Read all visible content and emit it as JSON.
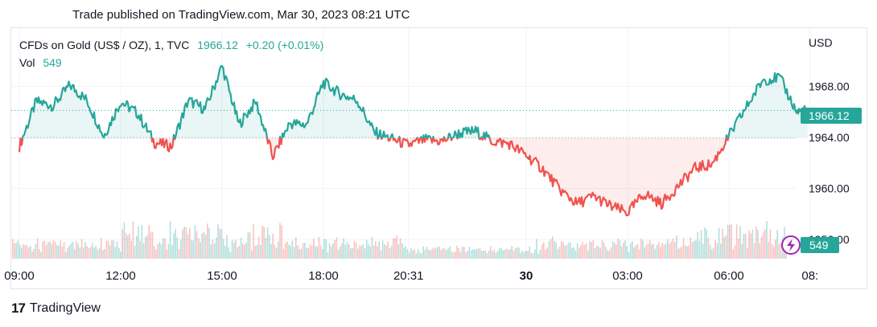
{
  "header": {
    "published": "Trade published on TradingView.com, Mar 30, 2023 08:21 UTC"
  },
  "legend": {
    "symbol": "CFDs on Gold (US$ / OZ), 1, TVC",
    "last": "1966.12",
    "change": "+0.20 (+0.01%)",
    "vol_label": "Vol",
    "vol_value": "549"
  },
  "colors": {
    "up": "#26a69a",
    "down": "#ef5350",
    "grid": "#f0f3fa",
    "axis_text": "#131722"
  },
  "footer": {
    "brand": "TradingView",
    "logo_icon": "tradingview-logo-icon"
  },
  "chart_data": {
    "type": "line",
    "y_axis_unit": "USD",
    "y_ticks": [
      "1968.00",
      "1964.00",
      "1960.00",
      "1956.00"
    ],
    "x_ticks": [
      "09:00",
      "12:00",
      "15:00",
      "18:00",
      "20:31",
      "30",
      "03:00",
      "06:00",
      "08:"
    ],
    "ylim": [
      1954.5,
      1972.5
    ],
    "baseline": 1963.95,
    "last_price": 1966.12,
    "last_label": "1966.12",
    "volume_label": "549",
    "series": [
      {
        "x": [
          "09:00",
          "09:30",
          "10:00",
          "10:30",
          "11:00",
          "11:30",
          "12:00",
          "12:30",
          "13:00",
          "13:30",
          "14:00",
          "14:30",
          "15:00",
          "15:30",
          "16:00",
          "16:30",
          "17:00",
          "17:30",
          "18:00",
          "18:30",
          "19:00",
          "19:30",
          "20:00",
          "20:30",
          "21:00",
          "21:30",
          "22:00",
          "22:30",
          "23:00",
          "23:30",
          "00:00",
          "00:30",
          "01:00",
          "01:30",
          "02:00",
          "02:30",
          "03:00",
          "03:30",
          "04:00",
          "04:30",
          "05:00",
          "05:30",
          "06:00",
          "06:30",
          "07:00",
          "07:30",
          "08:00",
          "08:20"
        ],
        "y": [
          1963.3,
          1966.8,
          1966.5,
          1968.1,
          1966.9,
          1964.1,
          1966.8,
          1965.9,
          1963.6,
          1963.3,
          1966.9,
          1966.2,
          1969.6,
          1965.0,
          1966.8,
          1962.5,
          1965.1,
          1965.0,
          1968.3,
          1967.4,
          1966.9,
          1964.4,
          1963.9,
          1963.4,
          1963.8,
          1963.7,
          1964.3,
          1964.5,
          1963.7,
          1963.5,
          1962.6,
          1961.5,
          1959.9,
          1958.8,
          1959.4,
          1958.6,
          1958.1,
          1959.6,
          1958.8,
          1960.2,
          1961.6,
          1961.9,
          1964.1,
          1966.3,
          1968.5,
          1968.7,
          1966.0,
          1966.1
        ]
      }
    ]
  }
}
